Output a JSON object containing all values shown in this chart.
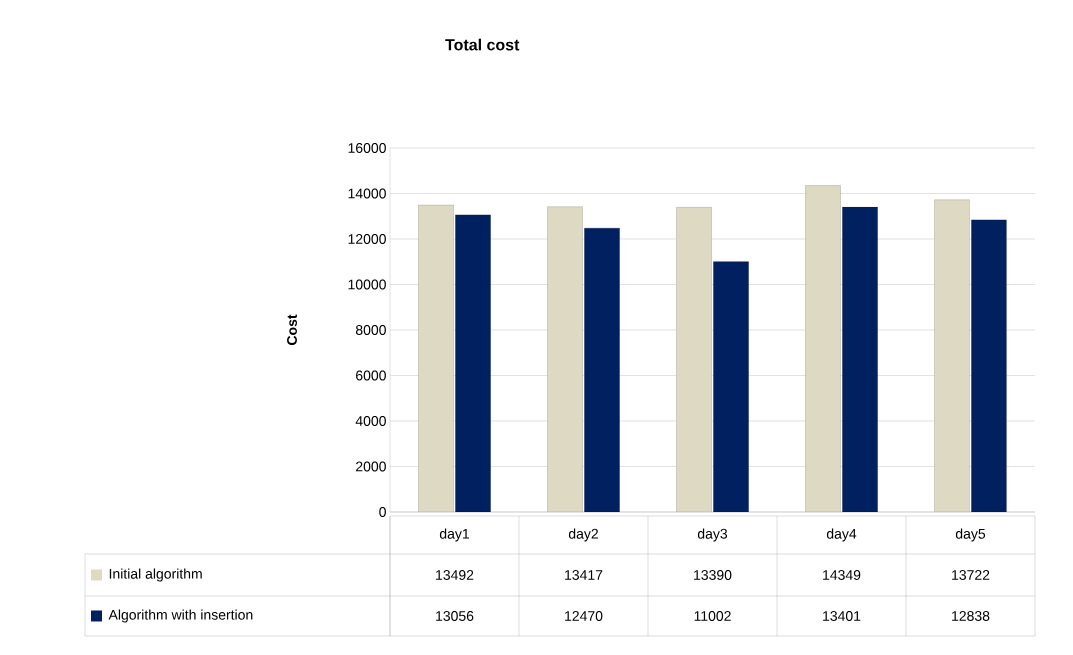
{
  "chart_data": {
    "type": "bar",
    "title": "Total cost",
    "ylabel": "Cost",
    "categories": [
      "day1",
      "day2",
      "day3",
      "day4",
      "day5"
    ],
    "series": [
      {
        "name": "Initial algorithm",
        "color": "#ddd9c3",
        "values": [
          13492,
          13417,
          13390,
          14349,
          13722
        ]
      },
      {
        "name": "Algorithm with insertion",
        "color": "#002060",
        "values": [
          13056,
          12470,
          11002,
          13401,
          12838
        ]
      }
    ],
    "ylim": [
      0,
      16000
    ],
    "yticks": [
      0,
      2000,
      4000,
      6000,
      8000,
      10000,
      12000,
      14000,
      16000
    ],
    "grid": "y",
    "legend": "bottom",
    "data_labels": true
  }
}
